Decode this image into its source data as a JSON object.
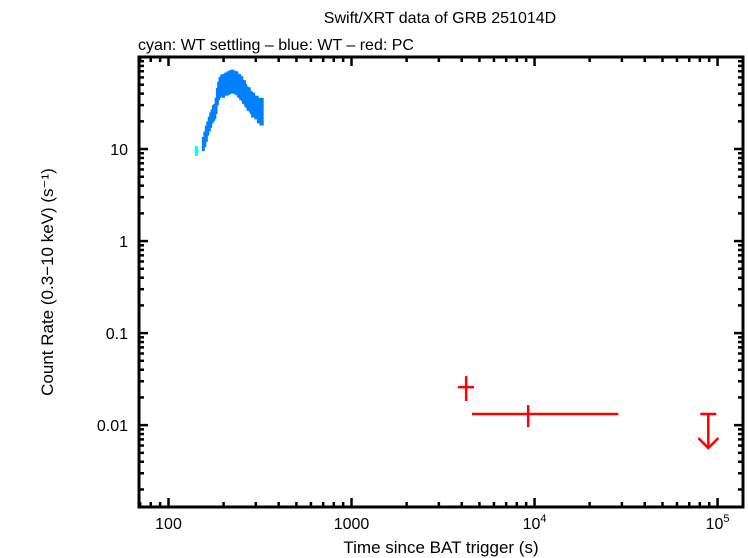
{
  "chart_data": {
    "type": "scatter",
    "title": "Swift/XRT data of GRB 251014D",
    "subtitle": "cyan: WT settling – blue: WT – red: PC",
    "xlabel": "Time since BAT trigger (s)",
    "ylabel": "Count Rate (0.3−10 keV) (s⁻¹)",
    "xscale": "log",
    "yscale": "log",
    "xlim": [
      69,
      137700
    ],
    "ylim": [
      0.00129,
      100
    ],
    "grid": false,
    "x_ticks": [
      {
        "value": 100,
        "label": "100"
      },
      {
        "value": 1000,
        "label": "1000"
      },
      {
        "value": 10000,
        "label": "10",
        "sup": "4"
      },
      {
        "value": 100000,
        "label": "10",
        "sup": "5"
      }
    ],
    "y_ticks": [
      {
        "value": 0.01,
        "label": "0.01"
      },
      {
        "value": 0.1,
        "label": "0.1"
      },
      {
        "value": 1,
        "label": "1"
      },
      {
        "value": 10,
        "label": "10"
      }
    ],
    "series": [
      {
        "name": "WT settling",
        "color": "#00ffff",
        "points": [
          {
            "t": 142,
            "t_lo": 139,
            "t_hi": 146,
            "rate": 9.5,
            "rate_lo": 8.4,
            "rate_hi": 10.8
          }
        ]
      },
      {
        "name": "WT",
        "color": "#0080ff",
        "t": [
          155,
          158,
          161,
          164,
          167,
          170,
          173,
          176,
          179,
          182,
          185,
          188,
          191,
          194,
          197,
          200,
          203,
          206,
          209,
          212,
          215,
          218,
          221,
          224,
          227,
          230,
          233,
          236,
          239,
          242,
          245,
          248,
          251,
          254,
          257,
          260,
          264,
          268,
          272,
          276,
          280,
          284,
          288,
          292,
          296,
          300,
          305,
          310,
          315,
          320,
          325
        ],
        "rate": [
          11.5,
          13,
          15,
          17,
          19,
          21,
          23,
          25,
          26,
          30,
          38,
          44,
          48,
          50,
          52,
          50,
          52,
          54,
          52,
          55,
          53,
          57,
          55,
          58,
          54,
          56,
          53,
          55,
          52,
          50,
          51,
          47,
          49,
          45,
          42,
          44,
          40,
          38,
          36,
          37,
          34,
          33,
          31,
          32,
          30,
          29,
          30,
          27,
          28,
          26,
          27
        ],
        "err": [
          2,
          2.5,
          3,
          3,
          3.5,
          4,
          4,
          5,
          5,
          6,
          8,
          10,
          12,
          13,
          13,
          14,
          14,
          14,
          14,
          15,
          14,
          15,
          15,
          15,
          14,
          15,
          14,
          15,
          14,
          14,
          14,
          13,
          13,
          12,
          11,
          12,
          11,
          10,
          10,
          10,
          9,
          9,
          9,
          9,
          8,
          8,
          8,
          8,
          8,
          8,
          9
        ]
      },
      {
        "name": "PC",
        "color": "#ff0000",
        "points": [
          {
            "t": 4230,
            "t_lo": 3820,
            "t_hi": 4670,
            "rate": 0.0259,
            "rate_lo": 0.0183,
            "rate_hi": 0.0341
          },
          {
            "t": 9230,
            "t_lo": 4550,
            "t_hi": 28700,
            "rate": 0.0132,
            "rate_lo": 0.0095,
            "rate_hi": 0.0165
          }
        ],
        "upper_limits": [
          {
            "t": 89000,
            "t_lo": 80500,
            "t_hi": 98500,
            "rate": 0.0132
          }
        ]
      }
    ]
  }
}
